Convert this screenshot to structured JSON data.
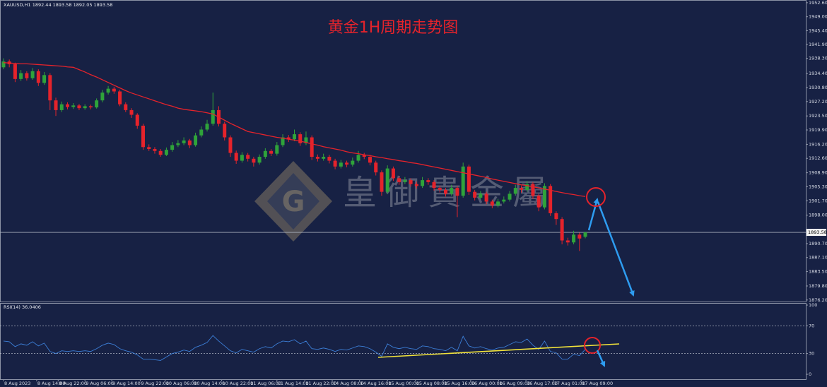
{
  "chart_data": {
    "type": "candlestick",
    "title": "黄金1H周期走势图",
    "symbol_label": "XAUUSD,H1 1892.44 1893.58 1892.05 1893.58",
    "watermark": "皇御貴金屬",
    "logo": "G",
    "up_color": "#2fa33a",
    "down_color": "#e5232b",
    "open": [
      1936.0,
      1937.5,
      1936.8,
      1933.0,
      1934.5,
      1933.2,
      1935.0,
      1932.0,
      1934.0,
      1927.5,
      1925.0,
      1926.5,
      1925.8,
      1926.2,
      1925.5,
      1926.0,
      1925.7,
      1927.5,
      1929.5,
      1930.5,
      1929.8,
      1926.5,
      1925.0,
      1923.8,
      1921.0,
      1915.5,
      1915.0,
      1914.5,
      1913.5,
      1914.8,
      1916.0,
      1916.5,
      1917.2,
      1916.0,
      1918.5,
      1920.0,
      1921.5,
      1925.0,
      1921.5,
      1918.0,
      1914.0,
      1912.0,
      1913.5,
      1912.5,
      1911.5,
      1913.0,
      1914.5,
      1913.8,
      1916.0,
      1918.0,
      1917.5,
      1918.8,
      1916.5,
      1918.0,
      1913.0,
      1912.5,
      1913.0,
      1912.0,
      1910.5,
      1911.5,
      1911.0,
      1912.0,
      1913.5,
      1913.0,
      1911.5,
      1909.0,
      1904.0,
      1910.0,
      1907.5,
      1906.5,
      1907.0,
      1906.0,
      1905.5,
      1907.0,
      1906.5,
      1905.0,
      1904.5,
      1903.5,
      1905.0,
      1903.0,
      1910.5,
      1904.0,
      1902.5,
      1903.5,
      1901.5,
      1900.5,
      1901.5,
      1902.0,
      1903.5,
      1905.0,
      1904.5,
      1906.0,
      1903.0,
      1900.0,
      1905.5,
      1898.5,
      1897.0,
      1891.5,
      1891.0,
      1893.0,
      1892.44
    ],
    "high": [
      1938.3,
      1938.0,
      1937.2,
      1935.3,
      1935.0,
      1935.8,
      1935.5,
      1934.8,
      1934.5,
      1928.2,
      1927.2,
      1927.0,
      1926.8,
      1926.6,
      1926.5,
      1926.4,
      1928.0,
      1930.2,
      1931.2,
      1931.0,
      1930.2,
      1927.0,
      1925.5,
      1924.2,
      1921.5,
      1916.2,
      1915.5,
      1915.0,
      1915.4,
      1916.8,
      1917.3,
      1918.0,
      1917.6,
      1919.2,
      1920.8,
      1922.5,
      1929.5,
      1926.0,
      1922.0,
      1918.5,
      1914.6,
      1914.2,
      1914.0,
      1913.0,
      1913.6,
      1915.2,
      1915.0,
      1916.8,
      1918.8,
      1918.6,
      1920.0,
      1919.3,
      1919.5,
      1918.5,
      1913.6,
      1913.8,
      1913.5,
      1912.5,
      1912.2,
      1912.0,
      1912.8,
      1914.5,
      1914.0,
      1913.5,
      1912.0,
      1909.5,
      1910.8,
      1910.5,
      1908.0,
      1907.8,
      1907.5,
      1906.6,
      1907.8,
      1907.5,
      1907.0,
      1905.6,
      1905.0,
      1905.8,
      1905.5,
      1911.5,
      1911.0,
      1904.5,
      1904.2,
      1904.0,
      1902.0,
      1902.2,
      1902.8,
      1904.2,
      1905.8,
      1905.6,
      1906.8,
      1906.5,
      1903.5,
      1906.2,
      1906.0,
      1899.0,
      1897.5,
      1892.2,
      1894.0,
      1893.5,
      1893.58
    ],
    "low": [
      1935.5,
      1936.0,
      1932.2,
      1932.5,
      1932.6,
      1932.8,
      1931.2,
      1931.5,
      1925.0,
      1923.5,
      1924.5,
      1925.2,
      1925.3,
      1925.0,
      1925.1,
      1925.2,
      1925.4,
      1927.0,
      1929.0,
      1929.2,
      1926.0,
      1924.5,
      1923.0,
      1920.2,
      1914.8,
      1914.5,
      1913.8,
      1913.0,
      1913.2,
      1914.3,
      1915.5,
      1916.0,
      1915.2,
      1915.6,
      1918.0,
      1919.5,
      1921.0,
      1920.8,
      1917.2,
      1913.0,
      1911.2,
      1911.5,
      1911.8,
      1910.5,
      1911.0,
      1912.5,
      1913.2,
      1913.3,
      1915.5,
      1916.8,
      1917.0,
      1915.8,
      1916.0,
      1912.2,
      1911.8,
      1912.0,
      1911.3,
      1909.8,
      1910.0,
      1910.3,
      1910.5,
      1911.5,
      1912.4,
      1910.8,
      1908.2,
      1903.0,
      1903.5,
      1906.8,
      1905.8,
      1906.0,
      1905.3,
      1904.8,
      1905.0,
      1905.8,
      1904.3,
      1903.8,
      1902.8,
      1903.0,
      1897.5,
      1902.5,
      1903.2,
      1901.8,
      1902.0,
      1900.8,
      1899.8,
      1900.0,
      1901.0,
      1901.5,
      1903.0,
      1903.8,
      1904.0,
      1902.2,
      1899.0,
      1899.5,
      1897.8,
      1895.5,
      1890.5,
      1890.2,
      1890.5,
      1888.8,
      1892.05
    ],
    "close": [
      1937.5,
      1936.8,
      1933.0,
      1934.5,
      1933.2,
      1935.0,
      1932.0,
      1934.0,
      1927.5,
      1925.0,
      1926.5,
      1925.8,
      1926.2,
      1925.5,
      1926.0,
      1925.7,
      1927.5,
      1929.5,
      1930.5,
      1929.8,
      1926.5,
      1925.0,
      1923.8,
      1921.0,
      1915.5,
      1915.0,
      1914.5,
      1913.5,
      1914.8,
      1916.0,
      1916.5,
      1917.2,
      1916.0,
      1918.5,
      1920.0,
      1921.5,
      1925.0,
      1921.5,
      1918.0,
      1914.0,
      1912.0,
      1913.5,
      1912.5,
      1911.5,
      1913.0,
      1914.5,
      1913.8,
      1916.0,
      1918.0,
      1917.5,
      1918.8,
      1916.5,
      1918.0,
      1913.0,
      1912.5,
      1913.0,
      1912.0,
      1910.5,
      1911.5,
      1911.0,
      1912.0,
      1913.5,
      1913.0,
      1911.5,
      1909.0,
      1904.0,
      1910.0,
      1907.5,
      1906.5,
      1907.0,
      1906.0,
      1905.5,
      1907.0,
      1906.5,
      1905.0,
      1904.5,
      1903.5,
      1905.0,
      1903.0,
      1910.5,
      1904.0,
      1902.5,
      1903.5,
      1901.5,
      1900.5,
      1901.5,
      1902.0,
      1903.5,
      1905.0,
      1904.5,
      1906.0,
      1903.0,
      1900.0,
      1905.5,
      1898.5,
      1897.0,
      1891.5,
      1891.0,
      1893.0,
      1892.0,
      1893.58
    ],
    "ma": {
      "color": "#e5232b",
      "values": [
        1937.2,
        1937.1,
        1937.0,
        1936.9,
        1936.9,
        1936.8,
        1936.7,
        1936.6,
        1936.5,
        1936.4,
        1936.3,
        1936.1,
        1936.0,
        1935.4,
        1934.8,
        1934.1,
        1933.5,
        1932.8,
        1932.1,
        1931.4,
        1930.7,
        1930.0,
        1929.4,
        1928.9,
        1928.4,
        1927.9,
        1927.4,
        1926.9,
        1926.4,
        1926.0,
        1925.5,
        1925.2,
        1925.0,
        1924.8,
        1924.6,
        1924.3,
        1924.0,
        1923.2,
        1922.4,
        1921.6,
        1920.9,
        1920.2,
        1919.5,
        1919.2,
        1918.9,
        1918.6,
        1918.3,
        1918.0,
        1917.8,
        1917.5,
        1917.3,
        1917.0,
        1916.7,
        1916.3,
        1916.0,
        1915.6,
        1915.3,
        1915.0,
        1914.7,
        1914.3,
        1914.0,
        1913.8,
        1913.5,
        1913.3,
        1913.0,
        1912.8,
        1912.5,
        1912.3,
        1912.0,
        1911.8,
        1911.5,
        1911.3,
        1911.0,
        1910.7,
        1910.4,
        1910.1,
        1909.8,
        1909.5,
        1909.2,
        1908.9,
        1908.6,
        1908.3,
        1908.0,
        1907.7,
        1907.3,
        1907.0,
        1906.7,
        1906.4,
        1906.1,
        1905.8,
        1905.6,
        1905.3,
        1905.0,
        1904.7,
        1904.4,
        1904.1,
        1903.8,
        1903.5,
        1903.3,
        1903.0,
        1902.8
      ]
    },
    "last_price": {
      "value": 1893.58,
      "label": "1893.58"
    },
    "ylim": [
      1875.8,
      1953.3
    ],
    "yticks": [
      {
        "value": 1952.6,
        "label": "1952.60"
      },
      {
        "value": 1949.0,
        "label": "1949.00"
      },
      {
        "value": 1945.4,
        "label": "1945.40"
      },
      {
        "value": 1941.9,
        "label": "1941.90"
      },
      {
        "value": 1938.3,
        "label": "1938.30"
      },
      {
        "value": 1934.4,
        "label": "1934.40"
      },
      {
        "value": 1930.8,
        "label": "1930.80"
      },
      {
        "value": 1927.2,
        "label": "1927.20"
      },
      {
        "value": 1923.5,
        "label": "1923.50"
      },
      {
        "value": 1919.9,
        "label": "1919.90"
      },
      {
        "value": 1916.2,
        "label": "1916.20"
      },
      {
        "value": 1912.6,
        "label": "1912.60"
      },
      {
        "value": 1908.9,
        "label": "1908.90"
      },
      {
        "value": 1905.3,
        "label": "1905.30"
      },
      {
        "value": 1901.7,
        "label": "1901.70"
      },
      {
        "value": 1898.0,
        "label": "1898.00"
      },
      {
        "value": 1890.7,
        "label": "1890.70"
      },
      {
        "value": 1887.1,
        "label": "1887.10"
      },
      {
        "value": 1883.5,
        "label": "1883.50"
      },
      {
        "value": 1879.8,
        "label": "1879.80"
      },
      {
        "value": 1876.2,
        "label": "1876.20"
      }
    ],
    "xlim": [
      -0.6,
      137.9
    ],
    "xticks": [
      {
        "value": 0,
        "label": "8 Aug 2023"
      },
      {
        "value": 5.7,
        "label": "8 Aug 14:00"
      },
      {
        "value": 9.4,
        "label": "8 Aug 22:00"
      },
      {
        "value": 14,
        "label": "9 Aug 06:00"
      },
      {
        "value": 18.6,
        "label": "9 Aug 14:00"
      },
      {
        "value": 23.5,
        "label": "9 Aug 22:00"
      },
      {
        "value": 27.8,
        "label": "10 Aug 06:00"
      },
      {
        "value": 32.6,
        "label": "10 Aug 14:00"
      },
      {
        "value": 37.5,
        "label": "10 Aug 22:00"
      },
      {
        "value": 42.3,
        "label": "11 Aug 06:00"
      },
      {
        "value": 47,
        "label": "11 Aug 14:00"
      },
      {
        "value": 51.8,
        "label": "11 Aug 22:00"
      },
      {
        "value": 56.5,
        "label": "14 Aug 08:00"
      },
      {
        "value": 61.2,
        "label": "14 Aug 16:00"
      },
      {
        "value": 66,
        "label": "15 Aug 00:00"
      },
      {
        "value": 70.8,
        "label": "15 Aug 08:00"
      },
      {
        "value": 75.6,
        "label": "15 Aug 16:00"
      },
      {
        "value": 80.3,
        "label": "16 Aug 00:00"
      },
      {
        "value": 85.1,
        "label": "16 Aug 09:00"
      },
      {
        "value": 89.8,
        "label": "16 Aug 17:00"
      },
      {
        "value": 94.5,
        "label": "17 Aug 01:00"
      },
      {
        "value": 99.3,
        "label": "17 Aug 09:00"
      }
    ],
    "rsi": {
      "label": "RSI(14) 36.0406",
      "color": "#3c7fd8",
      "values": [
        48,
        47,
        40,
        44,
        42,
        47,
        41,
        45,
        33,
        30,
        34,
        33,
        34,
        33,
        34,
        33,
        37,
        42,
        45,
        43,
        37,
        34,
        32,
        28,
        22,
        22,
        21,
        20,
        25,
        30,
        32,
        35,
        33,
        39,
        42,
        46,
        56,
        48,
        41,
        34,
        31,
        36,
        34,
        32,
        37,
        40,
        38,
        44,
        48,
        47,
        50,
        44,
        48,
        37,
        36,
        38,
        36,
        33,
        36,
        35,
        38,
        41,
        40,
        37,
        32,
        26,
        44,
        39,
        37,
        39,
        37,
        36,
        41,
        40,
        37,
        36,
        34,
        39,
        34,
        55,
        41,
        38,
        40,
        37,
        35,
        38,
        39,
        43,
        47,
        46,
        51,
        42,
        36,
        48,
        33,
        31,
        22,
        22,
        29,
        27,
        36.04
      ],
      "ylim": [
        0,
        100
      ],
      "yticks": [
        100,
        70,
        30,
        0
      ]
    }
  }
}
